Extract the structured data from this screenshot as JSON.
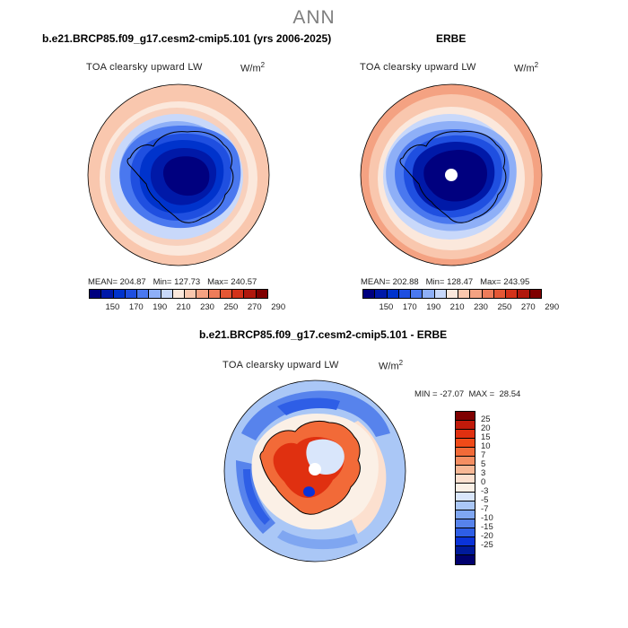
{
  "title": "ANN",
  "panels": {
    "model": {
      "title": "b.e21.BRCP85.f09_g17.cesm2-cmip5.101 (yrs 2006-2025)",
      "variable": "TOA clearsky upward LW",
      "units": "W/m",
      "units_exp": "2",
      "stats": "MEAN= 204.87   Min= 127.73   Max= 240.57"
    },
    "obs": {
      "title": "ERBE",
      "variable": "TOA clearsky upward LW",
      "units": "W/m",
      "units_exp": "2",
      "stats": "MEAN= 202.88   Min= 128.47   Max= 243.95"
    },
    "diff": {
      "title": "b.e21.BRCP85.f09_g17.cesm2-cmip5.101 - ERBE",
      "variable": "TOA clearsky upward LW",
      "units": "W/m",
      "units_exp": "2",
      "stats": "MIN = -27.07  MAX =  28.54"
    }
  },
  "abs_colorbar": {
    "colors": [
      "#00007f",
      "#0019a8",
      "#0033cc",
      "#1f4fe0",
      "#4a78ef",
      "#8eaff7",
      "#c8d8fa",
      "#fbe8dc",
      "#f9c7ae",
      "#f4a282",
      "#ee7c5a",
      "#e45735",
      "#d3321a",
      "#b0180d",
      "#7f0000"
    ],
    "tick_labels": [
      "150",
      "170",
      "190",
      "210",
      "230",
      "250",
      "270",
      "290"
    ]
  },
  "diff_colorbar": {
    "colors": [
      "#7f0000",
      "#c01a0a",
      "#e03010",
      "#f04a18",
      "#f26a38",
      "#f58e62",
      "#f8b896",
      "#fce0cf",
      "#fbf0e6",
      "#d9e6fb",
      "#aac7f6",
      "#7fa6f1",
      "#5783ec",
      "#2e5ee6",
      "#0a33d8",
      "#001a9a",
      "#00006e"
    ],
    "tick_labels": [
      "25",
      "20",
      "15",
      "10",
      "7",
      "5",
      "3",
      "0",
      "-3",
      "-5",
      "-7",
      "-10",
      "-15",
      "-20",
      "-25"
    ]
  }
}
